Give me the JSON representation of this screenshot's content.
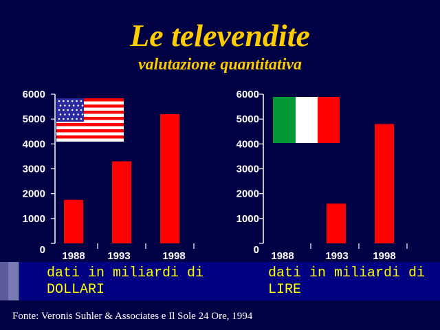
{
  "header": {
    "title": "Le televendite",
    "subtitle": "valutazione quantitativa"
  },
  "chart_data": [
    {
      "type": "bar",
      "categories": [
        "1988",
        "1993",
        "1998"
      ],
      "values": [
        1750,
        3300,
        5200
      ],
      "ylim": [
        0,
        6000
      ],
      "yticks": [
        "0",
        "1000",
        "2000",
        "3000",
        "4000",
        "5000",
        "6000"
      ],
      "flag": "usa-flag",
      "bar_color": "#ff0000",
      "unit_line1": "dati in miliardi di",
      "unit_line2": "DOLLARI"
    },
    {
      "type": "bar",
      "categories": [
        "1988",
        "1993",
        "1998"
      ],
      "values": [
        0,
        1600,
        4800
      ],
      "ylim": [
        0,
        6000
      ],
      "yticks": [
        "0",
        "1000",
        "2000",
        "3000",
        "4000",
        "5000",
        "6000"
      ],
      "flag": "italy-flag",
      "bar_color": "#ff0000",
      "unit_line1": "dati in miliardi di",
      "unit_line2": "LIRE"
    }
  ],
  "footer": {
    "source": "Fonte: Veronis Suhler & Associates e Il Sole 24 Ore, 1994"
  },
  "colors": {
    "background": "#000044",
    "title": "#ffcc00",
    "unit_text": "#ffff00",
    "band": "#000080"
  }
}
